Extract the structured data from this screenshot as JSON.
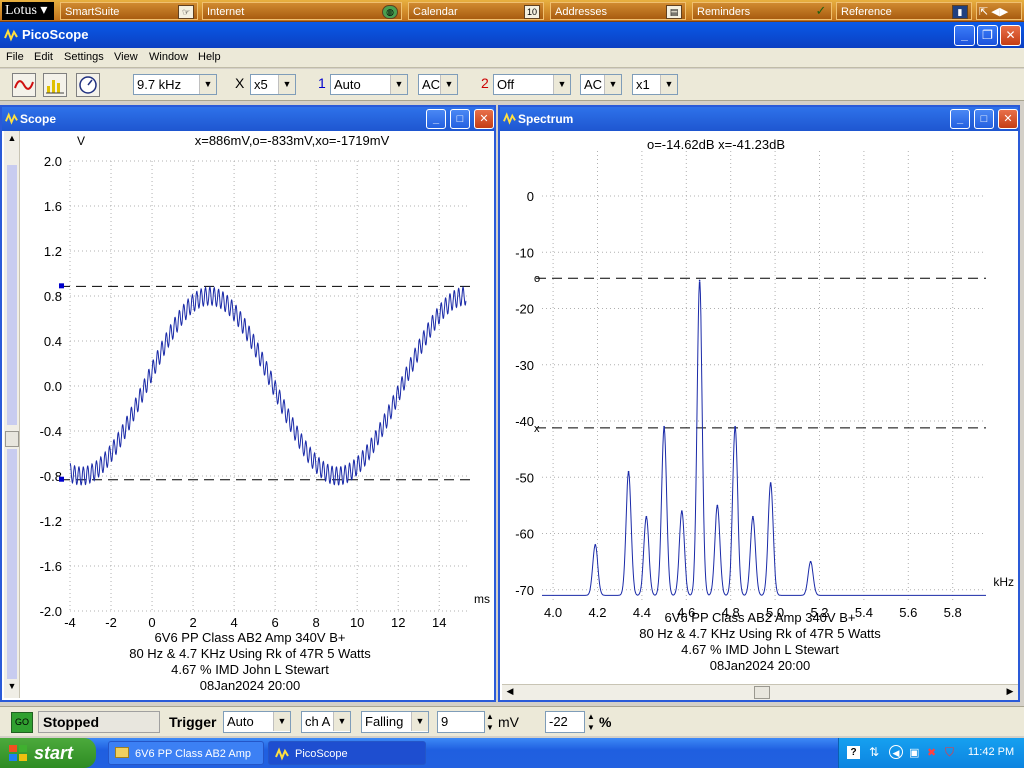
{
  "lotus_bar": {
    "logo": "Lotus",
    "items": [
      {
        "label": "SmartSuite",
        "icon": "smartsuite-icon"
      },
      {
        "label": "Internet",
        "icon": "globe-icon"
      },
      {
        "label": "Calendar",
        "icon": "calendar-icon",
        "icon_text": "10"
      },
      {
        "label": "Addresses",
        "icon": "address-book-icon"
      },
      {
        "label": "Reminders",
        "icon": "checkmark-icon"
      },
      {
        "label": "Reference",
        "icon": "book-icon"
      }
    ]
  },
  "app": {
    "title": "PicoScope"
  },
  "menu": [
    "File",
    "Edit",
    "Settings",
    "View",
    "Window",
    "Help"
  ],
  "toolbar": {
    "timebase": "9.7 kHz",
    "x_label": "X",
    "multiplier": "x5",
    "ch1_label": "1",
    "ch1_range": "Auto",
    "ch1_coupling": "AC",
    "ch2_label": "2",
    "ch2_range": "Off",
    "ch2_coupling": "AC",
    "ch2_multiplier": "x1",
    "colors": {
      "ch1": "#0000cc",
      "ch2": "#cc0000"
    }
  },
  "scope": {
    "title": "Scope",
    "readout": "x=886mV,o=-833mV,xo=-1719mV",
    "y_unit": "V",
    "x_unit": "ms",
    "caption": [
      "6V6 PP Class AB2 Amp 340V B+",
      "80 Hz & 4.7 KHz Using Rk of 47R 5 Watts",
      "4.67 % IMD John L Stewart",
      "08Jan2024  20:00"
    ]
  },
  "spectrum": {
    "title": "Spectrum",
    "readout": "o=-14.62dB  x=-41.23dB",
    "x_unit": "kHz",
    "caption": [
      "6V6 PP Class AB2 Amp 340V B+",
      "80 Hz & 4.7 KHz Using Rk of 47R 5 Watts",
      "4.67 % IMD John L Stewart",
      "08Jan2024  20:00"
    ]
  },
  "chart_data": [
    {
      "type": "line",
      "name": "scope",
      "xlim": [
        -4,
        15.5
      ],
      "ylim": [
        -2.0,
        2.0
      ],
      "x_ticks": [
        -4,
        -2,
        0,
        2,
        4,
        6,
        8,
        10,
        12,
        14
      ],
      "y_ticks": [
        2.0,
        1.6,
        1.2,
        0.8,
        0.4,
        0.0,
        -0.4,
        -0.8,
        -1.2,
        -1.6,
        -2.0
      ],
      "cursors": {
        "x": 0.886,
        "o": -0.833
      },
      "signal": {
        "low_freq_hz": 80,
        "low_amp_v": 0.8,
        "low_peak_ms": 2.8,
        "high_freq_khz": 4.7,
        "high_amp_v": 0.08
      }
    },
    {
      "type": "line",
      "name": "spectrum",
      "xlim": [
        3.95,
        5.95
      ],
      "ylim": [
        -72,
        8
      ],
      "x_ticks": [
        4.0,
        4.2,
        4.4,
        4.6,
        4.8,
        5.0,
        5.2,
        5.4,
        5.6,
        5.8
      ],
      "y_ticks": [
        0,
        -10,
        -20,
        -30,
        -40,
        -50,
        -60,
        -70
      ],
      "cursors": {
        "o": -14.62,
        "x": -41.23
      },
      "peaks": [
        {
          "x": 4.19,
          "y": -62
        },
        {
          "x": 4.34,
          "y": -49
        },
        {
          "x": 4.42,
          "y": -57
        },
        {
          "x": 4.5,
          "y": -41
        },
        {
          "x": 4.58,
          "y": -56
        },
        {
          "x": 4.66,
          "y": -15
        },
        {
          "x": 4.74,
          "y": -55
        },
        {
          "x": 4.82,
          "y": -41
        },
        {
          "x": 4.9,
          "y": -57
        },
        {
          "x": 4.98,
          "y": -51
        },
        {
          "x": 5.16,
          "y": -65
        }
      ],
      "floor": -71
    }
  ],
  "status": {
    "go_label": "GO",
    "state": "Stopped",
    "trigger_label": "Trigger",
    "trigger_mode": "Auto",
    "trigger_channel": "ch A",
    "trigger_edge": "Falling",
    "trigger_level": "9",
    "level_unit": "mV",
    "pre_trigger": "-22",
    "pre_unit": "%"
  },
  "taskbar": {
    "start_label": "start",
    "tasks": [
      {
        "label": "6V6 PP Class AB2 Amp",
        "icon": "folder-icon"
      },
      {
        "label": "PicoScope",
        "icon": "picoscope-icon"
      }
    ],
    "clock": "11:42 PM"
  }
}
